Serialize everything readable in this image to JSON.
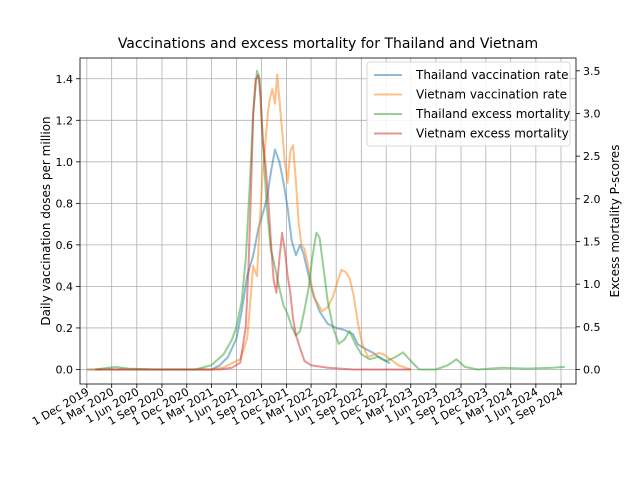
{
  "chart_data": {
    "type": "line",
    "title": "Vaccinations and excess mortality for Thailand and Vietnam",
    "ylabel_left": "Daily vaccination doses per million",
    "ylabel_right": "Excess mortality P-scores",
    "ylim_left": [
      -0.07,
      1.5
    ],
    "ylim_right": [
      -0.17,
      3.65
    ],
    "xlim": [
      "2019-11-06",
      "2024-10-26"
    ],
    "y_ticks_left": [
      "0.0",
      "0.2",
      "0.4",
      "0.6",
      "0.8",
      "1.0",
      "1.2",
      "1.4"
    ],
    "y_tick_values_left": [
      0,
      0.2,
      0.4,
      0.6,
      0.8,
      1.0,
      1.2,
      1.4
    ],
    "y_ticks_right": [
      "0.0",
      "0.5",
      "1.0",
      "1.5",
      "2.0",
      "2.5",
      "3.0",
      "3.5"
    ],
    "y_tick_values_right": [
      0,
      0.5,
      1.0,
      1.5,
      2.0,
      2.5,
      3.0,
      3.5
    ],
    "x_ticks": [
      "1 Dec 2019",
      "1 Mar 2020",
      "1 Jun 2020",
      "1 Sep 2020",
      "1 Dec 2020",
      "1 Mar 2021",
      "1 Jun 2021",
      "1 Sep 2021",
      "1 Dec 2021",
      "1 Mar 2022",
      "1 Jun 2022",
      "1 Sep 2022",
      "1 Dec 2022",
      "1 Mar 2023",
      "1 Jun 2023",
      "1 Sep 2023",
      "1 Dec 2023",
      "1 Mar 2024",
      "1 Jun 2024",
      "1 Sep 2024"
    ],
    "x_tick_values": [
      "2019-12-01",
      "2020-03-01",
      "2020-06-01",
      "2020-09-01",
      "2020-12-01",
      "2021-03-01",
      "2021-06-01",
      "2021-09-01",
      "2021-12-01",
      "2022-03-01",
      "2022-06-01",
      "2022-09-01",
      "2022-12-01",
      "2023-03-01",
      "2023-06-01",
      "2023-09-01",
      "2023-12-01",
      "2024-03-01",
      "2024-06-01",
      "2024-09-01"
    ],
    "grid": true,
    "legend_position": "top-right",
    "series": [
      {
        "name": "Thailand vaccination rate",
        "axis": "left",
        "color": "#1f77b4",
        "points": [
          [
            "2019-12-01",
            0
          ],
          [
            "2020-06-01",
            0
          ],
          [
            "2021-01-01",
            0
          ],
          [
            "2021-03-01",
            0.0
          ],
          [
            "2021-04-01",
            0.02
          ],
          [
            "2021-05-01",
            0.06
          ],
          [
            "2021-06-01",
            0.15
          ],
          [
            "2021-06-20",
            0.28
          ],
          [
            "2021-07-10",
            0.45
          ],
          [
            "2021-08-01",
            0.55
          ],
          [
            "2021-08-20",
            0.68
          ],
          [
            "2021-09-05",
            0.75
          ],
          [
            "2021-09-20",
            0.82
          ],
          [
            "2021-10-05",
            0.95
          ],
          [
            "2021-10-20",
            1.06
          ],
          [
            "2021-11-05",
            1.0
          ],
          [
            "2021-11-20",
            0.9
          ],
          [
            "2021-12-05",
            0.78
          ],
          [
            "2021-12-20",
            0.62
          ],
          [
            "2022-01-05",
            0.55
          ],
          [
            "2022-01-20",
            0.6
          ],
          [
            "2022-02-01",
            0.56
          ],
          [
            "2022-02-15",
            0.48
          ],
          [
            "2022-03-01",
            0.4
          ],
          [
            "2022-03-15",
            0.34
          ],
          [
            "2022-04-01",
            0.28
          ],
          [
            "2022-05-01",
            0.22
          ],
          [
            "2022-06-01",
            0.2
          ],
          [
            "2022-07-01",
            0.19
          ],
          [
            "2022-08-01",
            0.17
          ],
          [
            "2022-08-20",
            0.12
          ],
          [
            "2022-09-15",
            0.1
          ],
          [
            "2022-10-15",
            0.08
          ],
          [
            "2022-11-15",
            0.05
          ],
          [
            "2022-12-15",
            0.03
          ]
        ]
      },
      {
        "name": "Vietnam vaccination rate",
        "axis": "left",
        "color": "#ff7f0e",
        "points": [
          [
            "2019-12-01",
            0
          ],
          [
            "2021-01-01",
            0
          ],
          [
            "2021-03-01",
            0.0
          ],
          [
            "2021-04-15",
            0.01
          ],
          [
            "2021-05-15",
            0.03
          ],
          [
            "2021-06-15",
            0.05
          ],
          [
            "2021-07-10",
            0.15
          ],
          [
            "2021-07-20",
            0.3
          ],
          [
            "2021-08-01",
            0.5
          ],
          [
            "2021-08-15",
            0.45
          ],
          [
            "2021-08-25",
            0.7
          ],
          [
            "2021-09-05",
            0.95
          ],
          [
            "2021-09-15",
            1.1
          ],
          [
            "2021-09-25",
            1.25
          ],
          [
            "2021-10-01",
            1.3
          ],
          [
            "2021-10-10",
            1.35
          ],
          [
            "2021-10-20",
            1.28
          ],
          [
            "2021-10-28",
            1.42
          ],
          [
            "2021-11-05",
            1.3
          ],
          [
            "2021-11-15",
            1.15
          ],
          [
            "2021-11-25",
            1.0
          ],
          [
            "2021-12-05",
            0.9
          ],
          [
            "2021-12-15",
            1.05
          ],
          [
            "2021-12-25",
            1.08
          ],
          [
            "2022-01-05",
            0.9
          ],
          [
            "2022-01-15",
            0.7
          ],
          [
            "2022-01-25",
            0.6
          ],
          [
            "2022-02-05",
            0.58
          ],
          [
            "2022-02-15",
            0.52
          ],
          [
            "2022-02-25",
            0.45
          ],
          [
            "2022-03-10",
            0.35
          ],
          [
            "2022-03-25",
            0.32
          ],
          [
            "2022-04-10",
            0.28
          ],
          [
            "2022-05-01",
            0.3
          ],
          [
            "2022-05-20",
            0.35
          ],
          [
            "2022-06-05",
            0.42
          ],
          [
            "2022-06-20",
            0.48
          ],
          [
            "2022-07-05",
            0.47
          ],
          [
            "2022-07-20",
            0.44
          ],
          [
            "2022-08-05",
            0.35
          ],
          [
            "2022-08-20",
            0.22
          ],
          [
            "2022-09-05",
            0.12
          ],
          [
            "2022-09-25",
            0.06
          ],
          [
            "2022-10-15",
            0.07
          ],
          [
            "2022-11-05",
            0.08
          ],
          [
            "2022-11-25",
            0.07
          ],
          [
            "2022-12-15",
            0.05
          ],
          [
            "2023-01-15",
            0.02
          ],
          [
            "2023-03-01",
            0.0
          ]
        ]
      },
      {
        "name": "Thailand excess mortality",
        "axis": "right",
        "color": "#2ca02c",
        "points": [
          [
            "2020-01-01",
            0.0
          ],
          [
            "2020-03-15",
            0.03
          ],
          [
            "2020-05-01",
            0.01
          ],
          [
            "2020-08-01",
            0.0
          ],
          [
            "2020-11-01",
            0.0
          ],
          [
            "2021-01-01",
            0.0
          ],
          [
            "2021-03-01",
            0.05
          ],
          [
            "2021-04-15",
            0.18
          ],
          [
            "2021-05-15",
            0.35
          ],
          [
            "2021-06-01",
            0.5
          ],
          [
            "2021-06-20",
            0.8
          ],
          [
            "2021-07-05",
            1.3
          ],
          [
            "2021-07-20",
            2.2
          ],
          [
            "2021-08-01",
            3.0
          ],
          [
            "2021-08-15",
            3.5
          ],
          [
            "2021-08-25",
            3.4
          ],
          [
            "2021-09-05",
            2.7
          ],
          [
            "2021-09-20",
            1.9
          ],
          [
            "2021-10-05",
            1.4
          ],
          [
            "2021-10-20",
            1.2
          ],
          [
            "2021-11-05",
            0.95
          ],
          [
            "2021-11-20",
            0.75
          ],
          [
            "2021-12-05",
            0.65
          ],
          [
            "2021-12-20",
            0.5
          ],
          [
            "2022-01-05",
            0.4
          ],
          [
            "2022-01-20",
            0.45
          ],
          [
            "2022-02-05",
            0.7
          ],
          [
            "2022-02-20",
            0.95
          ],
          [
            "2022-03-05",
            1.3
          ],
          [
            "2022-03-20",
            1.6
          ],
          [
            "2022-04-01",
            1.55
          ],
          [
            "2022-04-15",
            1.2
          ],
          [
            "2022-05-01",
            0.8
          ],
          [
            "2022-05-20",
            0.5
          ],
          [
            "2022-06-10",
            0.3
          ],
          [
            "2022-07-01",
            0.35
          ],
          [
            "2022-07-20",
            0.45
          ],
          [
            "2022-08-10",
            0.3
          ],
          [
            "2022-09-01",
            0.18
          ],
          [
            "2022-10-01",
            0.12
          ],
          [
            "2022-11-01",
            0.15
          ],
          [
            "2022-12-01",
            0.1
          ],
          [
            "2023-01-01",
            0.14
          ],
          [
            "2023-02-01",
            0.2
          ],
          [
            "2023-03-01",
            0.1
          ],
          [
            "2023-04-01",
            0.0
          ],
          [
            "2023-06-01",
            0.0
          ],
          [
            "2023-07-15",
            0.05
          ],
          [
            "2023-08-15",
            0.12
          ],
          [
            "2023-09-15",
            0.03
          ],
          [
            "2023-11-01",
            0.0
          ],
          [
            "2024-02-01",
            0.02
          ],
          [
            "2024-05-01",
            0.01
          ],
          [
            "2024-08-01",
            0.02
          ],
          [
            "2024-09-15",
            0.03
          ]
        ]
      },
      {
        "name": "Vietnam excess mortality",
        "axis": "right",
        "color": "#d62728",
        "points": [
          [
            "2020-01-01",
            0.0
          ],
          [
            "2020-06-01",
            0.0
          ],
          [
            "2021-01-01",
            0.0
          ],
          [
            "2021-04-01",
            0.0
          ],
          [
            "2021-05-15",
            0.02
          ],
          [
            "2021-06-15",
            0.08
          ],
          [
            "2021-07-05",
            0.5
          ],
          [
            "2021-07-15",
            1.2
          ],
          [
            "2021-07-25",
            2.2
          ],
          [
            "2021-08-01",
            3.0
          ],
          [
            "2021-08-10",
            3.4
          ],
          [
            "2021-08-20",
            3.45
          ],
          [
            "2021-08-28",
            3.2
          ],
          [
            "2021-09-05",
            2.7
          ],
          [
            "2021-09-15",
            2.4
          ],
          [
            "2021-09-25",
            2.0
          ],
          [
            "2021-10-05",
            1.5
          ],
          [
            "2021-10-15",
            1.05
          ],
          [
            "2021-10-25",
            0.9
          ],
          [
            "2021-11-05",
            1.3
          ],
          [
            "2021-11-15",
            1.6
          ],
          [
            "2021-11-25",
            1.4
          ],
          [
            "2021-12-05",
            1.1
          ],
          [
            "2021-12-15",
            0.9
          ],
          [
            "2021-12-25",
            0.6
          ],
          [
            "2022-01-05",
            0.4
          ],
          [
            "2022-01-20",
            0.25
          ],
          [
            "2022-02-05",
            0.1
          ],
          [
            "2022-03-01",
            0.05
          ],
          [
            "2022-05-01",
            0.02
          ],
          [
            "2022-08-01",
            0.0
          ],
          [
            "2022-12-01",
            0.0
          ],
          [
            "2023-03-01",
            0.0
          ]
        ]
      }
    ]
  }
}
